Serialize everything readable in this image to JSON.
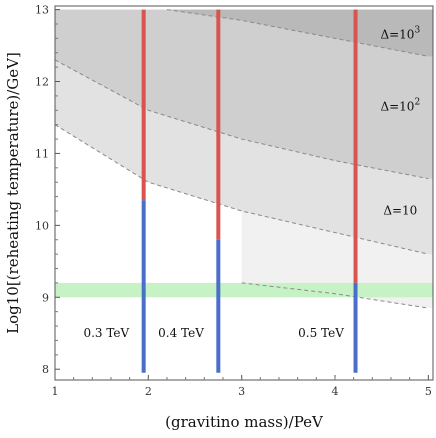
{
  "chart_data": {
    "type": "line",
    "xlabel": "(gravitino mass)/PeV",
    "ylabel": "Log10[(reheating temperature)/GeV]",
    "xlim": [
      1,
      5.05
    ],
    "ylim": [
      7.85,
      13.05
    ],
    "xticks": [
      "1",
      "2",
      "3",
      "4",
      "5"
    ],
    "yticks": [
      "8",
      "9",
      "10",
      "11",
      "12",
      "13"
    ],
    "grid": false,
    "regions": [
      {
        "label": "Δ=10³",
        "base": "10",
        "sup": "3",
        "boundary_y_at_x": [
          [
            2.2,
            13.0
          ],
          [
            3.0,
            12.85
          ],
          [
            4.0,
            12.6
          ],
          [
            5.0,
            12.35
          ]
        ]
      },
      {
        "label": "Δ=10²",
        "base": "10",
        "sup": "2",
        "boundary_y_at_x": [
          [
            1.0,
            12.3
          ],
          [
            2.0,
            11.6
          ],
          [
            3.0,
            11.2
          ],
          [
            4.0,
            10.9
          ],
          [
            5.0,
            10.65
          ]
        ]
      },
      {
        "label": "Δ=10",
        "base": "10",
        "sup": "",
        "boundary_y_at_x": [
          [
            1.0,
            11.4
          ],
          [
            2.0,
            10.6
          ],
          [
            3.0,
            10.2
          ],
          [
            4.0,
            9.9
          ],
          [
            5.0,
            9.6
          ]
        ]
      },
      {
        "label": "",
        "base": "",
        "sup": "",
        "boundary_y_at_x": [
          [
            3.0,
            9.2
          ],
          [
            4.0,
            9.05
          ],
          [
            5.0,
            8.85
          ]
        ]
      }
    ],
    "band": {
      "y_range": [
        9.0,
        9.2
      ],
      "color": "#c6f2c6"
    },
    "vertical_lines": [
      {
        "label": "0.3 TeV",
        "x": 1.95,
        "y_min": 7.95,
        "y_split": 10.35,
        "y_max": 13.0
      },
      {
        "label": "0.4 TeV",
        "x": 2.75,
        "y_min": 7.95,
        "y_split": 9.8,
        "y_max": 13.0
      },
      {
        "label": "0.5 TeV",
        "x": 4.22,
        "y_min": 7.95,
        "y_split": 9.2,
        "y_max": 13.0
      }
    ],
    "colors": {
      "upper_line": "#d9534f",
      "lower_line": "#4a6fc9",
      "contour": "#8a8a8a"
    }
  }
}
